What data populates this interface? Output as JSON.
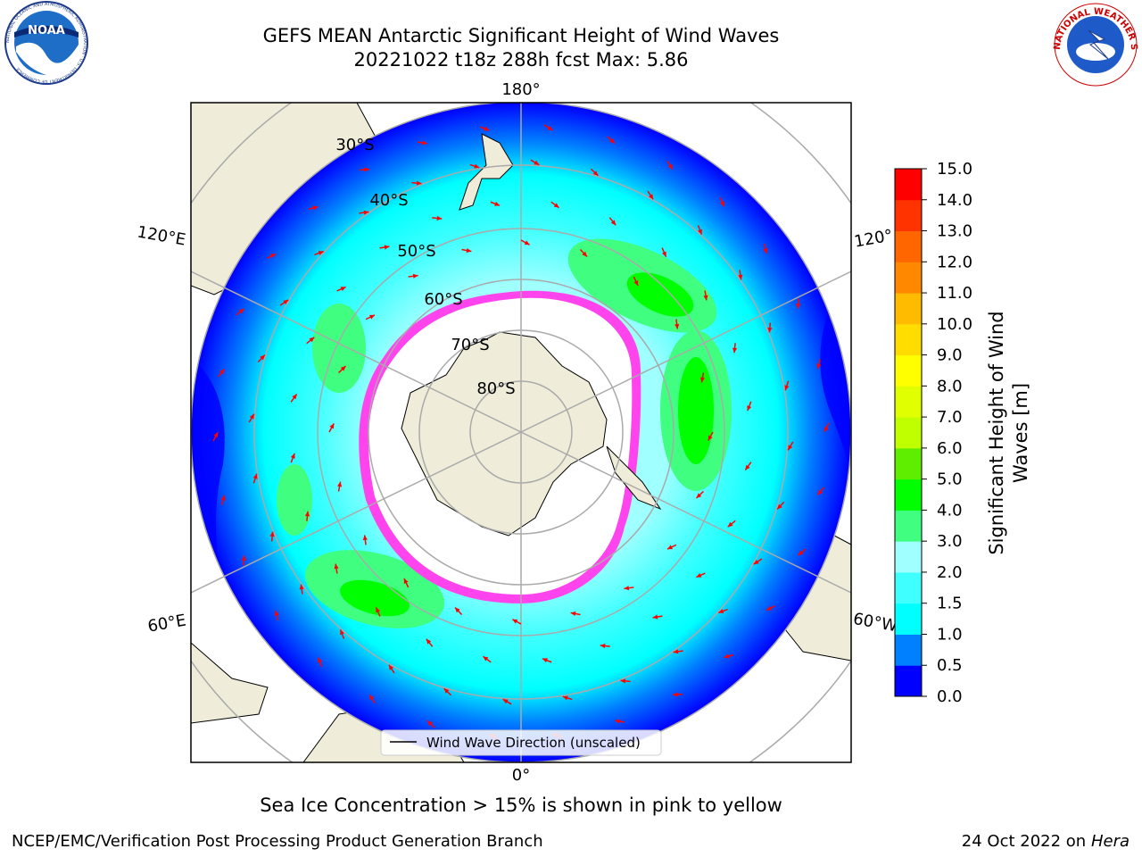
{
  "header": {
    "title_line1": "GEFS MEAN Antarctic Significant Height of Wind Waves",
    "title_line2": "20221022 t18z 288h fcst   Max: 5.86"
  },
  "logos": {
    "left": "NOAA",
    "left_ring": "NATIONAL OCEANIC AND ATMOSPHERIC ADMINISTRATION · U.S. DEPARTMENT OF COMMERCE",
    "right_ring": "NATIONAL WEATHER SERVICE"
  },
  "map": {
    "lon_labels": {
      "top": "180°",
      "bottom": "0°",
      "upper_left": "120°E",
      "upper_right": "120°",
      "lower_left": "60°E",
      "lower_right": "60°W"
    },
    "lat_labels": [
      "30°S",
      "40°S",
      "50°S",
      "60°S",
      "70°S",
      "80°S"
    ],
    "legend_label": "Wind Wave Direction (unscaled)"
  },
  "colorbar": {
    "label_line1": "Significant Height of Wind",
    "label_line2": "Waves [m]",
    "ticks": [
      "0.0",
      "0.5",
      "1.0",
      "1.5",
      "2.0",
      "3.0",
      "4.0",
      "5.0",
      "6.0",
      "7.0",
      "8.0",
      "9.0",
      "10.0",
      "11.0",
      "12.0",
      "13.0",
      "14.0",
      "15.0"
    ],
    "colors": [
      "#0000ff",
      "#0080ff",
      "#00ffff",
      "#40ffff",
      "#a0ffff",
      "#40ff80",
      "#00ff00",
      "#60ee00",
      "#c0ff00",
      "#e0ff00",
      "#ffff00",
      "#ffdd00",
      "#ffbb00",
      "#ff8800",
      "#ff6600",
      "#ff3300",
      "#ff0000"
    ]
  },
  "caption": "Sea Ice Concentration > 15% is shown in pink to yellow",
  "footer": {
    "left": "NCEP/EMC/Verification Post Processing Product Generation Branch",
    "right_prefix": "24 Oct 2022 on ",
    "right_host": "Hera"
  },
  "map_colors": {
    "ocean_low": "#0000ff",
    "ocean_mid": "#0080ff",
    "land": "#efedd9",
    "ice": "#ff44ee",
    "arrow": "#ff0000"
  }
}
